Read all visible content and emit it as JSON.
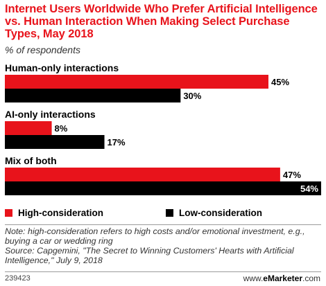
{
  "header": {
    "title": "Internet Users Worldwide Who Prefer Artificial Intelligence vs. Human Interaction When Making Select Purchase Types, May 2018",
    "subtitle": "% of respondents"
  },
  "legend": {
    "items": [
      {
        "label": "High-consideration",
        "color": "#e8131b"
      },
      {
        "label": "Low-consideration",
        "color": "#000000"
      }
    ]
  },
  "footer": {
    "note": "Note: high-consideration refers to high costs and/or emotional investment, e.g., buying a car or wedding ring",
    "source": "Source: Capgemini, \"The Secret to Winning Customers' Hearts with Artificial Intelligence,\" July 9, 2018",
    "id": "239423",
    "brand_prefix": "www.",
    "brand_name": "eMarketer",
    "brand_suffix": ".com"
  },
  "chart_data": {
    "type": "bar",
    "orientation": "horizontal",
    "categories": [
      "Human-only interactions",
      "AI-only interactions",
      "Mix of both"
    ],
    "series": [
      {
        "name": "High-consideration",
        "color": "#e8131b",
        "values": [
          45,
          8,
          47
        ]
      },
      {
        "name": "Low-consideration",
        "color": "#000000",
        "values": [
          30,
          17,
          54
        ]
      }
    ],
    "value_suffix": "%",
    "xlim": [
      0,
      54
    ],
    "grid": false,
    "legend_position": "bottom"
  }
}
